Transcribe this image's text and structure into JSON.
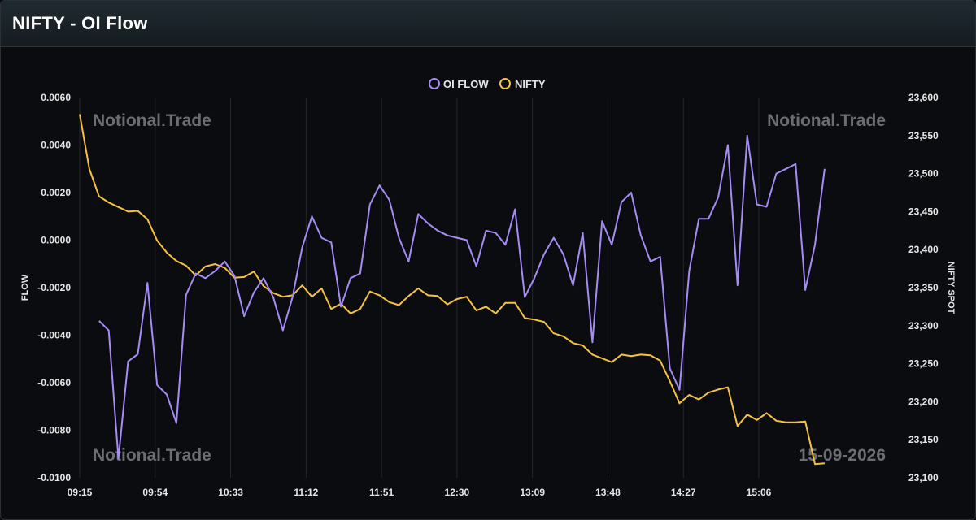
{
  "window": {
    "title": "NIFTY - OI Flow"
  },
  "colors": {
    "oi_flow": "#a68cf5",
    "nifty": "#f5c243",
    "grid": "#24272e",
    "background": "#0b0c10"
  },
  "watermarks": [
    "Notional.Trade",
    "Notional.Trade",
    "Notional.Trade",
    "15-09-2026"
  ],
  "chart_data": {
    "type": "line",
    "xlabel": "",
    "y_left_label": "FLOW",
    "y_right_label": "NIFTY SPOT",
    "y_left_lim": [
      -0.01,
      0.006
    ],
    "y_right_lim": [
      23100,
      23600
    ],
    "x_ticks": [
      "09:15",
      "09:54",
      "10:33",
      "11:12",
      "11:51",
      "12:30",
      "13:09",
      "13:48",
      "14:27",
      "15:06"
    ],
    "y_left_ticks": [
      "0.0060",
      "0.0040",
      "0.0020",
      "0.0000",
      "-0.0020",
      "-0.0040",
      "-0.0060",
      "-0.0080",
      "-0.0100"
    ],
    "y_right_ticks": [
      "23,600",
      "23,550",
      "23,500",
      "23,450",
      "23,400",
      "23,350",
      "23,300",
      "23,250",
      "23,200",
      "23,150",
      "23,100"
    ],
    "legend": {
      "position": "top-center"
    },
    "grid": "vertical",
    "series": [
      {
        "name": "OI FLOW",
        "axis": "left",
        "points": [
          [
            10,
            -0.0034
          ],
          [
            15,
            -0.0038
          ],
          [
            20,
            -0.0092
          ],
          [
            25,
            -0.0051
          ],
          [
            30,
            -0.0048
          ],
          [
            35,
            -0.0018
          ],
          [
            40,
            -0.0061
          ],
          [
            45,
            -0.0065
          ],
          [
            50,
            -0.0077
          ],
          [
            55,
            -0.0023
          ],
          [
            60,
            -0.0014
          ],
          [
            65,
            -0.0016
          ],
          [
            70,
            -0.0013
          ],
          [
            75,
            -0.0009
          ],
          [
            80,
            -0.0015
          ],
          [
            85,
            -0.0032
          ],
          [
            90,
            -0.0022
          ],
          [
            95,
            -0.0016
          ],
          [
            100,
            -0.0024
          ],
          [
            105,
            -0.0038
          ],
          [
            110,
            -0.0024
          ],
          [
            115,
            -0.0003
          ],
          [
            120,
            0.001
          ],
          [
            125,
            0.0001
          ],
          [
            130,
            -0.0001
          ],
          [
            135,
            -0.0028
          ],
          [
            140,
            -0.0016
          ],
          [
            145,
            -0.0014
          ],
          [
            150,
            0.0015
          ],
          [
            155,
            0.0023
          ],
          [
            160,
            0.0017
          ],
          [
            165,
            0.0001
          ],
          [
            170,
            -0.0009
          ],
          [
            175,
            0.0011
          ],
          [
            180,
            0.0007
          ],
          [
            185,
            0.0004
          ],
          [
            190,
            0.0002
          ],
          [
            195,
            0.0001
          ],
          [
            200,
            0.0
          ],
          [
            205,
            -0.0011
          ],
          [
            210,
            0.0004
          ],
          [
            215,
            0.0003
          ],
          [
            220,
            -0.0002
          ],
          [
            225,
            0.0013
          ],
          [
            230,
            -0.0024
          ],
          [
            235,
            -0.0016
          ],
          [
            240,
            -0.0006
          ],
          [
            245,
            0.0001
          ],
          [
            250,
            -0.0006
          ],
          [
            255,
            -0.0019
          ],
          [
            260,
            0.0003
          ],
          [
            265,
            -0.0043
          ],
          [
            270,
            0.0008
          ],
          [
            275,
            -0.0002
          ],
          [
            280,
            0.0016
          ],
          [
            285,
            0.002
          ],
          [
            290,
            0.0002
          ],
          [
            295,
            -0.0009
          ],
          [
            300,
            -0.0007
          ],
          [
            305,
            -0.0054
          ],
          [
            310,
            -0.0063
          ],
          [
            315,
            -0.0013
          ],
          [
            320,
            0.0009
          ],
          [
            325,
            0.0009
          ],
          [
            330,
            0.0018
          ],
          [
            335,
            0.004
          ],
          [
            340,
            -0.0019
          ],
          [
            345,
            0.0044
          ],
          [
            350,
            0.0015
          ],
          [
            355,
            0.0014
          ],
          [
            360,
            0.0028
          ],
          [
            365,
            0.003
          ],
          [
            370,
            0.0032
          ],
          [
            375,
            -0.0021
          ],
          [
            380,
            -0.0002
          ],
          [
            385,
            0.003
          ]
        ]
      },
      {
        "name": "NIFTY",
        "axis": "right",
        "points": [
          [
            0,
            23578
          ],
          [
            5,
            23506
          ],
          [
            10,
            23470
          ],
          [
            15,
            23462
          ],
          [
            20,
            23456
          ],
          [
            25,
            23450
          ],
          [
            30,
            23451
          ],
          [
            35,
            23440
          ],
          [
            40,
            23412
          ],
          [
            45,
            23396
          ],
          [
            50,
            23385
          ],
          [
            55,
            23379
          ],
          [
            60,
            23366
          ],
          [
            65,
            23378
          ],
          [
            70,
            23381
          ],
          [
            75,
            23376
          ],
          [
            80,
            23363
          ],
          [
            85,
            23364
          ],
          [
            90,
            23371
          ],
          [
            95,
            23352
          ],
          [
            100,
            23343
          ],
          [
            105,
            23338
          ],
          [
            110,
            23340
          ],
          [
            115,
            23353
          ],
          [
            120,
            23338
          ],
          [
            125,
            23349
          ],
          [
            130,
            23322
          ],
          [
            135,
            23329
          ],
          [
            140,
            23316
          ],
          [
            145,
            23322
          ],
          [
            150,
            23345
          ],
          [
            155,
            23340
          ],
          [
            160,
            23331
          ],
          [
            165,
            23327
          ],
          [
            170,
            23339
          ],
          [
            175,
            23349
          ],
          [
            180,
            23340
          ],
          [
            185,
            23339
          ],
          [
            190,
            23328
          ],
          [
            195,
            23335
          ],
          [
            200,
            23338
          ],
          [
            205,
            23320
          ],
          [
            210,
            23325
          ],
          [
            215,
            23316
          ],
          [
            220,
            23330
          ],
          [
            225,
            23330
          ],
          [
            230,
            23310
          ],
          [
            235,
            23308
          ],
          [
            240,
            23305
          ],
          [
            245,
            23290
          ],
          [
            250,
            23286
          ],
          [
            255,
            23277
          ],
          [
            260,
            23274
          ],
          [
            265,
            23262
          ],
          [
            270,
            23257
          ],
          [
            275,
            23252
          ],
          [
            280,
            23262
          ],
          [
            285,
            23260
          ],
          [
            290,
            23262
          ],
          [
            295,
            23261
          ],
          [
            300,
            23254
          ],
          [
            305,
            23227
          ],
          [
            310,
            23198
          ],
          [
            315,
            23209
          ],
          [
            320,
            23203
          ],
          [
            325,
            23212
          ],
          [
            330,
            23216
          ],
          [
            335,
            23219
          ],
          [
            340,
            23168
          ],
          [
            345,
            23183
          ],
          [
            350,
            23176
          ],
          [
            355,
            23185
          ],
          [
            360,
            23175
          ],
          [
            365,
            23173
          ],
          [
            370,
            23173
          ],
          [
            375,
            23174
          ],
          [
            380,
            23118
          ],
          [
            385,
            23119
          ]
        ]
      }
    ]
  }
}
